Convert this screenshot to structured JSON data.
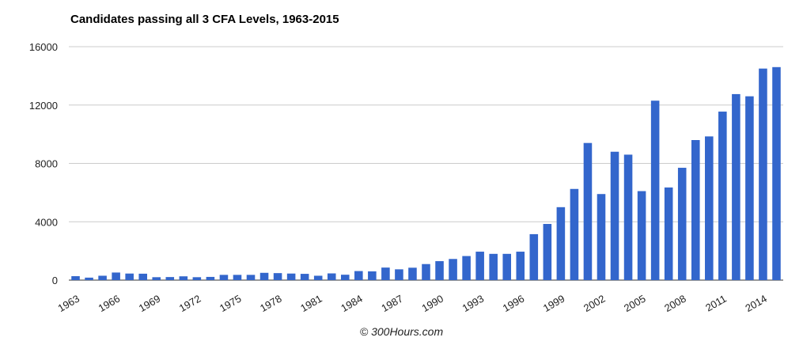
{
  "chart_data": {
    "type": "bar",
    "title": "Candidates passing all 3 CFA Levels, 1963-2015",
    "xlabel": "",
    "ylabel": "",
    "ylim": [
      0,
      16000
    ],
    "yticks": [
      0,
      4000,
      8000,
      12000,
      16000
    ],
    "grid": true,
    "color": "#3366cc",
    "categories": [
      1963,
      1964,
      1965,
      1966,
      1967,
      1968,
      1969,
      1970,
      1971,
      1972,
      1973,
      1974,
      1975,
      1976,
      1977,
      1978,
      1979,
      1980,
      1981,
      1982,
      1983,
      1984,
      1985,
      1986,
      1987,
      1988,
      1989,
      1990,
      1991,
      1992,
      1993,
      1994,
      1995,
      1996,
      1997,
      1998,
      1999,
      2000,
      2001,
      2002,
      2003,
      2004,
      2005,
      2006,
      2007,
      2008,
      2009,
      2010,
      2011,
      2012,
      2013,
      2014,
      2015
    ],
    "x_tick_labels": [
      "1963",
      "1966",
      "1969",
      "1972",
      "1975",
      "1978",
      "1981",
      "1984",
      "1987",
      "1990",
      "1993",
      "1996",
      "1999",
      "2002",
      "2005",
      "2008",
      "2011",
      "2014"
    ],
    "values": [
      270,
      170,
      300,
      520,
      450,
      440,
      200,
      210,
      260,
      200,
      220,
      360,
      360,
      360,
      500,
      480,
      450,
      430,
      300,
      460,
      370,
      620,
      600,
      860,
      740,
      850,
      1100,
      1300,
      1450,
      1650,
      1950,
      1800,
      1800,
      1950,
      3150,
      3850,
      5000,
      6250,
      9400,
      5900,
      8800,
      8600,
      6100,
      12300,
      6350,
      7700,
      9600,
      9850,
      11550,
      12750,
      12600,
      14500,
      14600
    ]
  },
  "footer": "© 300Hours.com"
}
